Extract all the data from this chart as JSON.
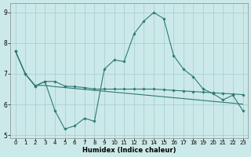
{
  "xlabel": "Humidex (Indice chaleur)",
  "background_color": "#cce9e9",
  "grid_color": "#aacfcf",
  "line_color": "#2d7a72",
  "x": [
    0,
    1,
    2,
    3,
    4,
    5,
    6,
    7,
    8,
    9,
    10,
    11,
    12,
    13,
    14,
    15,
    16,
    17,
    18,
    19,
    20,
    21,
    22,
    23
  ],
  "line1": [
    7.75,
    7.0,
    6.6,
    6.75,
    5.8,
    5.2,
    5.3,
    5.55,
    5.45,
    7.15,
    7.45,
    7.4,
    8.3,
    8.72,
    9.0,
    8.8,
    7.6,
    7.15,
    6.9,
    6.5,
    6.35,
    6.15,
    6.3,
    5.8
  ],
  "line2": [
    7.75,
    7.0,
    6.6,
    6.75,
    6.75,
    6.6,
    6.58,
    6.55,
    6.5,
    6.5,
    6.5,
    6.5,
    6.5,
    6.5,
    6.5,
    6.48,
    6.46,
    6.44,
    6.42,
    6.4,
    6.38,
    6.36,
    6.34,
    6.32
  ],
  "line3": [
    7.75,
    7.0,
    6.62,
    6.62,
    6.58,
    6.55,
    6.52,
    6.49,
    6.46,
    6.43,
    6.4,
    6.37,
    6.34,
    6.31,
    6.28,
    6.25,
    6.22,
    6.19,
    6.16,
    6.13,
    6.1,
    6.07,
    6.04,
    6.01
  ],
  "ylim": [
    4.9,
    9.3
  ],
  "xlim": [
    -0.5,
    23.5
  ],
  "yticks": [
    5,
    6,
    7,
    8,
    9
  ],
  "xticks": [
    0,
    1,
    2,
    3,
    4,
    5,
    6,
    7,
    8,
    9,
    10,
    11,
    12,
    13,
    14,
    15,
    16,
    17,
    18,
    19,
    20,
    21,
    22,
    23
  ],
  "xlabel_fontsize": 6.0,
  "tick_fontsize_x": 5.0,
  "tick_fontsize_y": 5.5
}
